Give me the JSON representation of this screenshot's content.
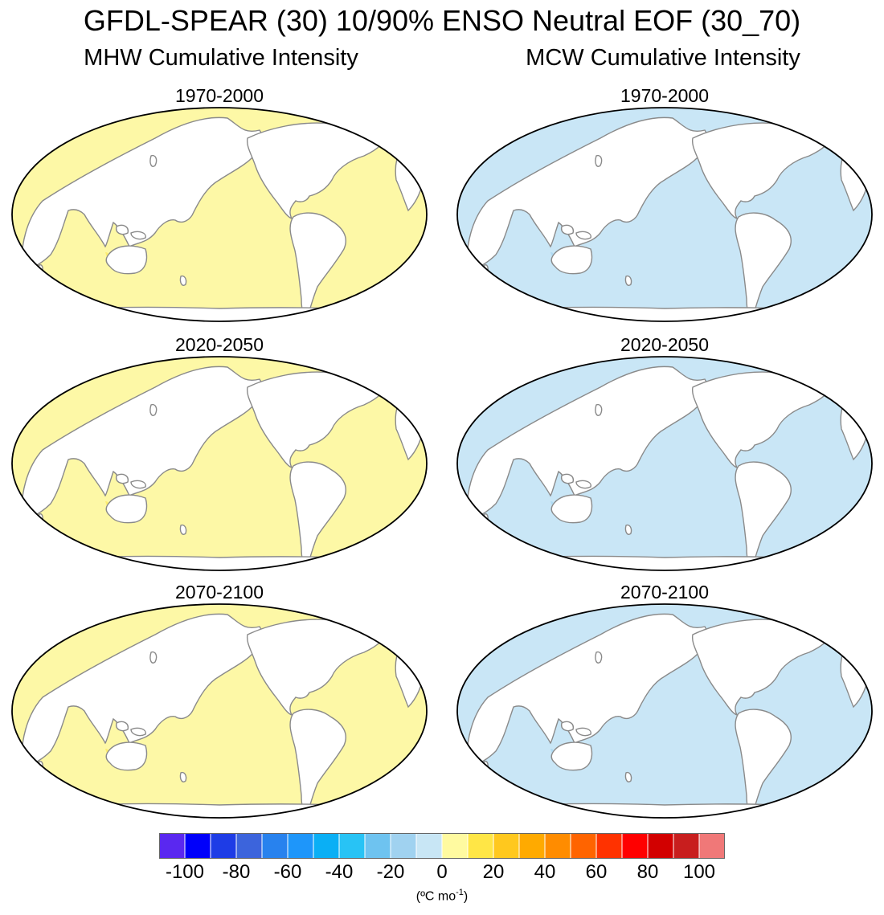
{
  "title": "GFDL-SPEAR (30) 10/90% ENSO Neutral EOF (30_70)",
  "columns": [
    {
      "title": "MHW Cumulative Intensity",
      "ocean_color": "#fdf8a6",
      "hotspot_color": "#fde64a",
      "panels": [
        {
          "period": "1970-2000"
        },
        {
          "period": "2020-2050"
        },
        {
          "period": "2070-2100"
        }
      ]
    },
    {
      "title": "MCW Cumulative Intensity",
      "ocean_color": "#c9e6f6",
      "hotspot_color": "#9fd2f0",
      "panels": [
        {
          "period": "1970-2000"
        },
        {
          "period": "2020-2050"
        },
        {
          "period": "2070-2100"
        }
      ]
    }
  ],
  "colorbar": {
    "ticks": [
      "-100",
      "-80",
      "-60",
      "-40",
      "-20",
      "0",
      "20",
      "40",
      "60",
      "80",
      "100"
    ],
    "colors": [
      "#5a28f0",
      "#0000fa",
      "#1e3ce6",
      "#3c64dc",
      "#2882ee",
      "#1e96fa",
      "#0aaff5",
      "#28c3f5",
      "#6ec3f0",
      "#a0d2f0",
      "#c8e6f5",
      "#fffaa0",
      "#ffe646",
      "#ffc81e",
      "#ffaa00",
      "#ff8c00",
      "#ff6400",
      "#ff3200",
      "#ff0000",
      "#d20000",
      "#c81e1e",
      "#f07878"
    ],
    "units": "(ºC mo",
    "units_exp": "-1",
    "units_close": ")"
  }
}
